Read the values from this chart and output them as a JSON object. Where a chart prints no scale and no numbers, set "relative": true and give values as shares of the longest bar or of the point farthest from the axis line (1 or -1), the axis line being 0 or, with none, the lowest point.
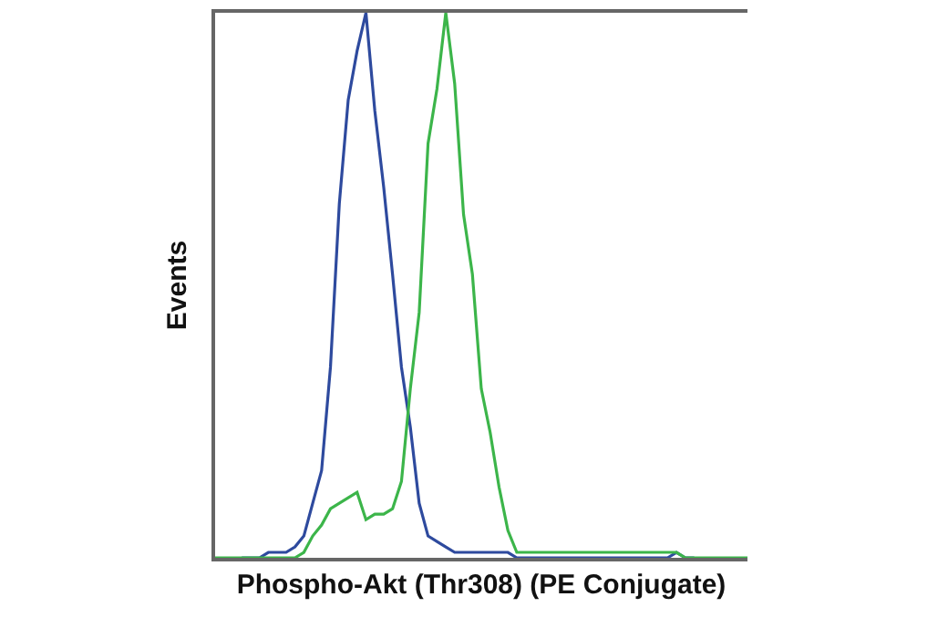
{
  "chart_data": {
    "type": "line",
    "relative": true,
    "xlabel": "Phospho-Akt (Thr308) (PE Conjugate)",
    "ylabel": "Events",
    "tick_labels": false,
    "grid": false,
    "marker": "none",
    "line_style": "solid",
    "categories": [
      null,
      null,
      null,
      null,
      null,
      null,
      null,
      null,
      null,
      null,
      null,
      null,
      null,
      null,
      null,
      null,
      null,
      null,
      null,
      null,
      null,
      null,
      null,
      null,
      null,
      null,
      null,
      null,
      null,
      null,
      null,
      null,
      null,
      null,
      null,
      null,
      null,
      null,
      null,
      null,
      null,
      null,
      null,
      null,
      null,
      null,
      null,
      null,
      null,
      null,
      null,
      null,
      null,
      null,
      null,
      null,
      null,
      null,
      null,
      null,
      null
    ],
    "series": [
      {
        "color": "#2e4a9e",
        "values": [
          null,
          null,
          null,
          0,
          0,
          0,
          0.01,
          0.01,
          0.01,
          0.02,
          0.04,
          0.1,
          0.16,
          0.35,
          0.65,
          0.84,
          0.93,
          1.0,
          0.82,
          0.68,
          0.52,
          0.35,
          0.24,
          0.1,
          0.04,
          0.03,
          0.02,
          0.01,
          0.01,
          0.01,
          0.01,
          0.01,
          0.01,
          0.01,
          0,
          0,
          0,
          0,
          0,
          0,
          0,
          0,
          0,
          0,
          0,
          0,
          0,
          0,
          0,
          0,
          0,
          0,
          0.01,
          0,
          0,
          null,
          null,
          null,
          null,
          null,
          null
        ]
      },
      {
        "color": "#3cb54a",
        "values": [
          0,
          0,
          0,
          0,
          0,
          0,
          0,
          0,
          0,
          0,
          0.01,
          0.04,
          0.06,
          0.09,
          0.1,
          0.11,
          0.12,
          0.07,
          0.08,
          0.08,
          0.09,
          0.14,
          0.31,
          0.45,
          0.76,
          0.86,
          1.0,
          0.87,
          0.63,
          0.52,
          0.31,
          0.23,
          0.13,
          0.05,
          0.01,
          0.01,
          0.01,
          0.01,
          0.01,
          0.01,
          0.01,
          0.01,
          0.01,
          0.01,
          0.01,
          0.01,
          0.01,
          0.01,
          0.01,
          0.01,
          0.01,
          0.01,
          0.01,
          0,
          0,
          0,
          0,
          0,
          0,
          0,
          0
        ]
      }
    ]
  }
}
